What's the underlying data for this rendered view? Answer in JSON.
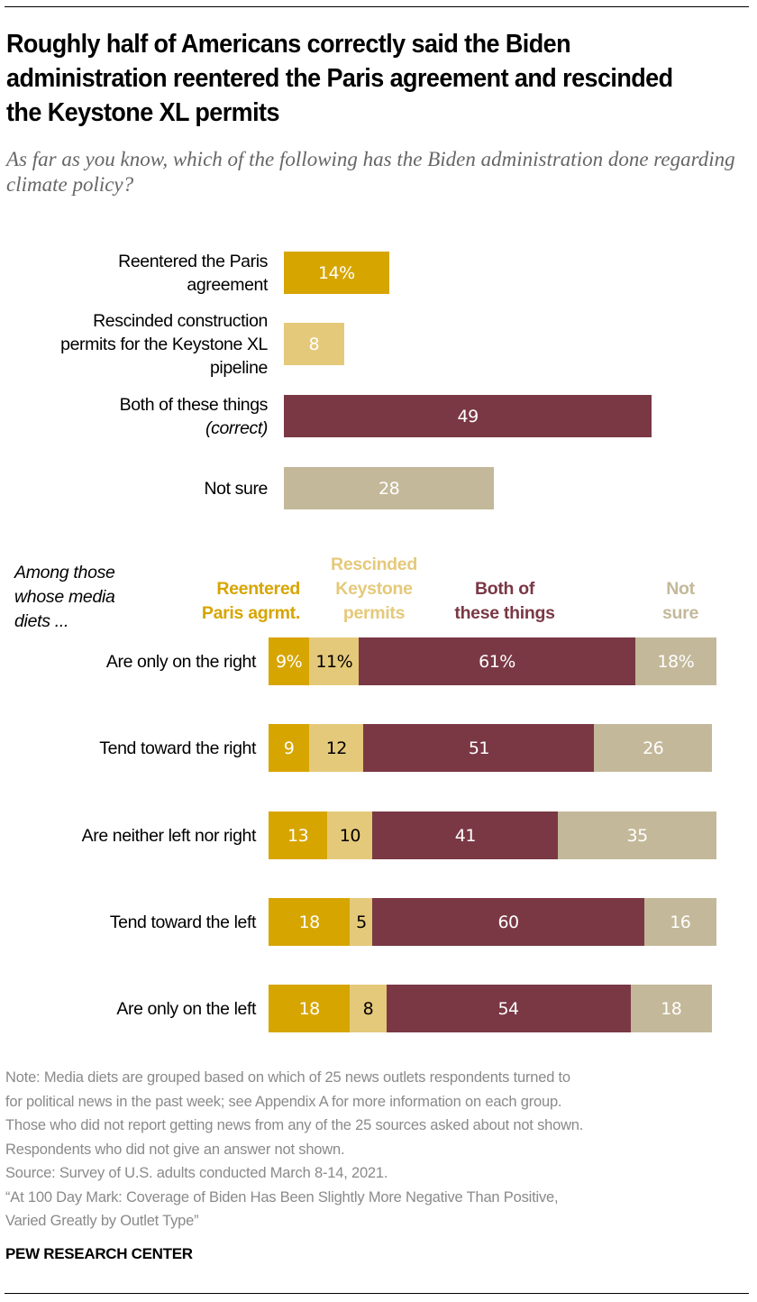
{
  "title": "Roughly half of Americans correctly said the Biden administration reentered the Paris agreement and rescinded the Keystone XL permits",
  "subtitle": "As far as you know, which of the following has the Biden administration done regarding climate policy?",
  "colors": {
    "paris": "#D7A500",
    "keystone": "#E5C97A",
    "both": "#7A3844",
    "notsure": "#C3B899"
  },
  "chart_data": [
    {
      "type": "bar",
      "orientation": "horizontal",
      "title": "All U.S. adults",
      "categories": [
        "Reentered the Paris agreement",
        "Rescinded construction permits for the Keystone XL pipeline",
        "Both of these things (correct)",
        "Not sure"
      ],
      "category_lines": [
        [
          "Reentered the Paris",
          "agreement"
        ],
        [
          "Rescinded construction",
          "permits for the Keystone XL",
          "pipeline"
        ],
        [
          "Both of these things",
          "(correct)"
        ],
        [
          "Not sure"
        ]
      ],
      "values": [
        14,
        8,
        49,
        28
      ],
      "value_labels": [
        "14%",
        "8",
        "49",
        "28"
      ],
      "colors": [
        "#D7A500",
        "#E5C97A",
        "#7A3844",
        "#C3B899"
      ],
      "xlim": [
        0,
        100
      ],
      "grid": false,
      "units": "%"
    },
    {
      "type": "bar",
      "orientation": "horizontal",
      "stacked": true,
      "row_header": [
        "Among those",
        "whose media",
        "diets ..."
      ],
      "categories": [
        "Are only on the right",
        "Tend toward the right",
        "Are neither left nor right",
        "Tend toward the left",
        "Are only on the left"
      ],
      "legend_placement": "top",
      "series": [
        {
          "name": "Reentered Paris agrmt.",
          "header_lines": [
            "Reentered",
            "Paris agrmt."
          ],
          "color": "#D7A500",
          "values": [
            9,
            9,
            13,
            18,
            18
          ],
          "labels": [
            "9%",
            "9",
            "13",
            "18",
            "18"
          ],
          "label_color": "#ffffff"
        },
        {
          "name": "Rescinded Keystone permits",
          "header_lines": [
            "Rescinded",
            "Keystone",
            "permits"
          ],
          "color": "#E5C97A",
          "values": [
            11,
            12,
            10,
            5,
            8
          ],
          "labels": [
            "11%",
            "12",
            "10",
            "5",
            "8"
          ],
          "label_color": "#000000"
        },
        {
          "name": "Both of these things",
          "header_lines": [
            "Both of",
            "these things"
          ],
          "color": "#7A3844",
          "values": [
            61,
            51,
            41,
            60,
            54
          ],
          "labels": [
            "61%",
            "51",
            "41",
            "60",
            "54"
          ],
          "label_color": "#ffffff"
        },
        {
          "name": "Not sure",
          "header_lines": [
            "Not",
            "sure"
          ],
          "color": "#C3B899",
          "values": [
            18,
            26,
            35,
            16,
            18
          ],
          "labels": [
            "18%",
            "26",
            "35",
            "16",
            "18"
          ],
          "label_color": "#ffffff"
        }
      ],
      "xlim": [
        0,
        100
      ],
      "grid": false,
      "units": "%"
    }
  ],
  "notes": [
    "Note: Media diets are grouped based on which of 25 news outlets respondents turned to",
    "for political news in the past week; see Appendix A for more information on each group.",
    "Those who did not report getting news from any of the 25 sources asked about not shown.",
    "Respondents who did not give an answer not shown.",
    "Source: Survey of U.S. adults conducted March 8-14, 2021.",
    "“At 100 Day Mark: Coverage of Biden Has Been Slightly More Negative Than Positive,",
    "Varied Greatly by Outlet Type”"
  ],
  "brand": "PEW RESEARCH CENTER"
}
